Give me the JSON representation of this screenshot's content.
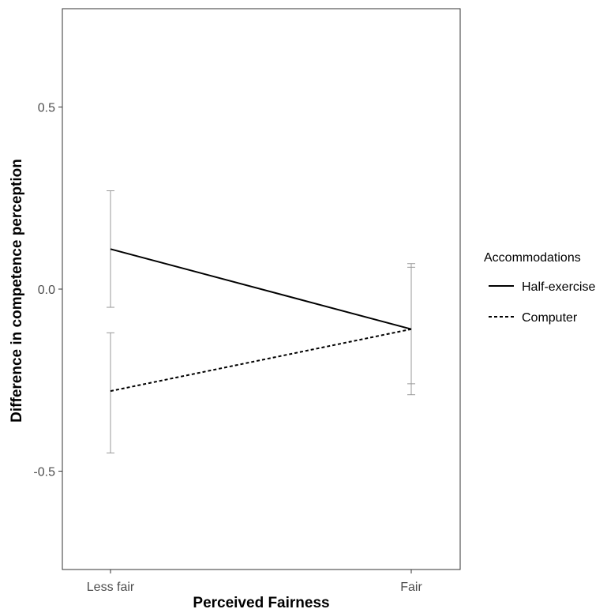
{
  "chart_data": {
    "type": "line",
    "xlabel": "Perceived Fairness",
    "ylabel": "Difference in competence perception",
    "categories": [
      "Less fair",
      "Fair"
    ],
    "ylim": [
      -0.77,
      0.77
    ],
    "yticks": [
      0.5,
      0.0,
      -0.5
    ],
    "ytick_labels": [
      "0.5",
      "0.0",
      "-0.5"
    ],
    "grid": false,
    "legend": {
      "title": "Accommodations",
      "position": "right"
    },
    "series": [
      {
        "name": "Half-exercise",
        "line_style": "solid",
        "values": [
          0.11,
          -0.11
        ],
        "ci_low": [
          -0.05,
          -0.26
        ],
        "ci_high": [
          0.27,
          0.06
        ]
      },
      {
        "name": "Computer",
        "line_style": "dashed",
        "values": [
          -0.28,
          -0.11
        ],
        "ci_low": [
          -0.45,
          -0.29
        ],
        "ci_high": [
          -0.12,
          0.07
        ]
      }
    ],
    "colors": {
      "line": "#000000",
      "errorbar": "#999999",
      "axis": "#333333"
    }
  }
}
